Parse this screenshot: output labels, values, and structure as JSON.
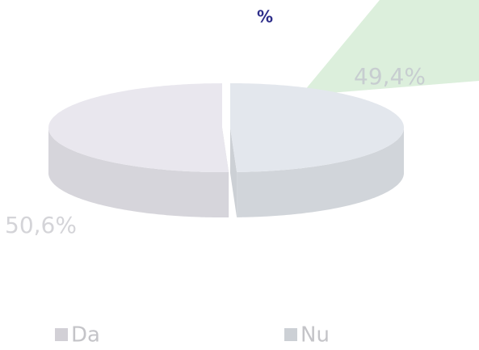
{
  "chart_data": {
    "type": "pie",
    "title": "%",
    "categories": [
      "Da",
      "Nu"
    ],
    "values": [
      50.6,
      49.4
    ],
    "value_labels": [
      "50,6%",
      "49,4%"
    ],
    "colors": [
      "#e9e7ee",
      "#e3e7ed"
    ]
  }
}
